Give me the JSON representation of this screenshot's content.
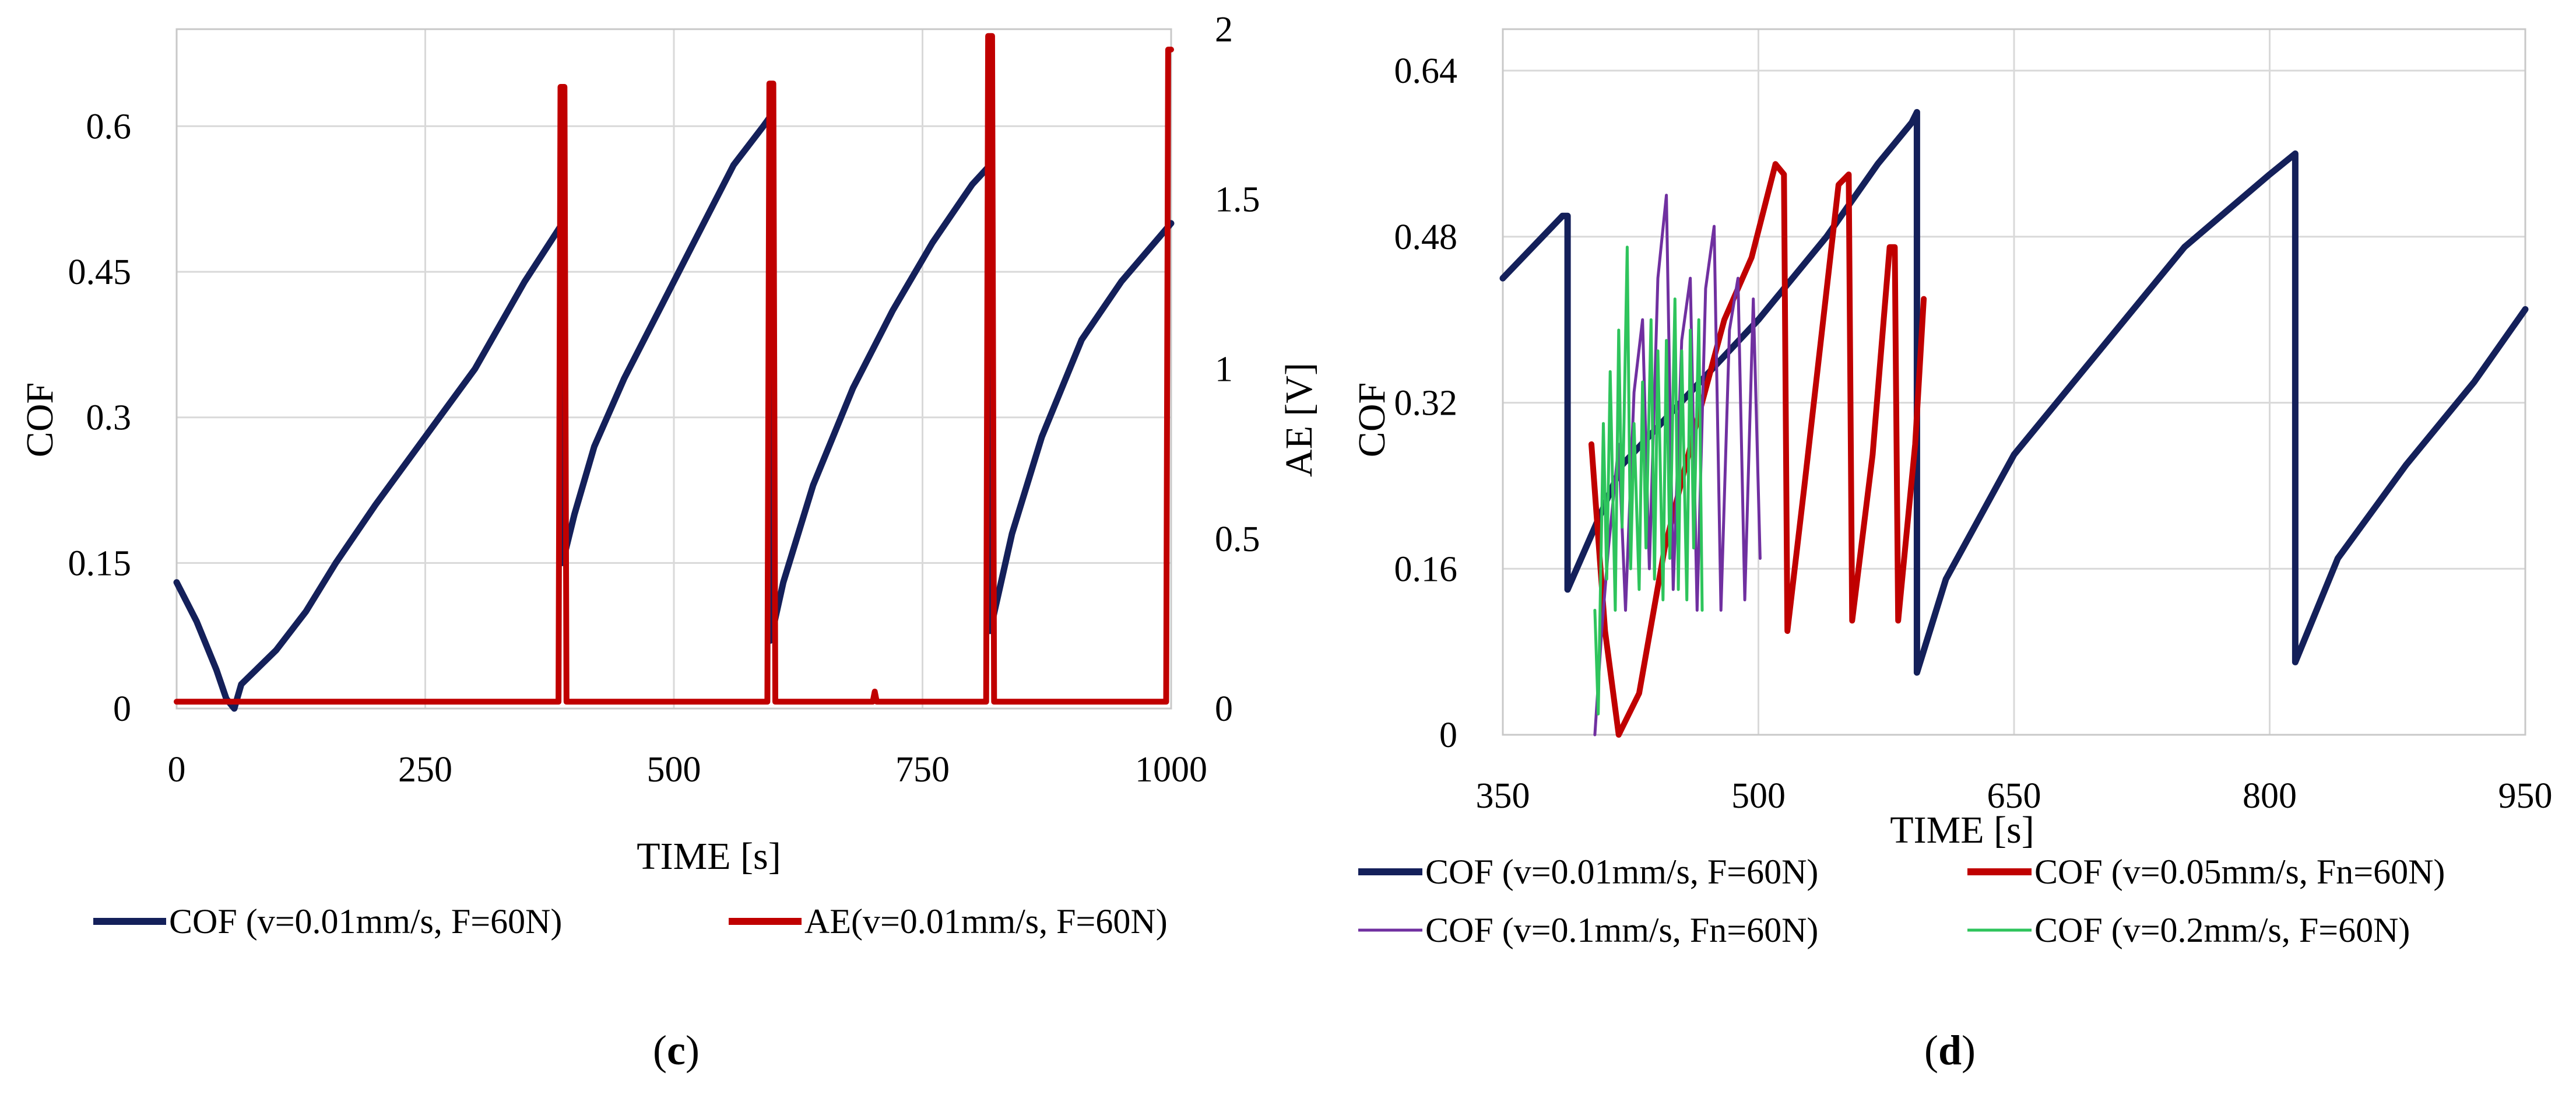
{
  "panels": [
    {
      "label_open": "(",
      "letter": "c",
      "label_close": ")"
    },
    {
      "label_open": "(",
      "letter": "d",
      "label_close": ")"
    }
  ],
  "chart_data": [
    {
      "id": "c",
      "type": "line",
      "xlabel": "TIME [s]",
      "ylabel": "COF",
      "y2label": "AE [V]",
      "xlim": [
        0,
        1000
      ],
      "ylim": [
        0,
        0.7
      ],
      "y2lim": [
        0,
        2.0
      ],
      "xticks": [
        0,
        250,
        500,
        750,
        1000
      ],
      "xtick_labels": [
        "0",
        "250",
        "500",
        "750",
        "1000"
      ],
      "yticks": [
        0,
        0.15,
        0.3,
        0.45,
        0.6
      ],
      "ytick_labels": [
        "0",
        "0.15",
        "0.3",
        "0.45",
        "0.6"
      ],
      "y2ticks": [
        0,
        0.5,
        1,
        1.5,
        2
      ],
      "y2tick_labels": [
        "0",
        "0.5",
        "1",
        "1.5",
        "2"
      ],
      "grid": true,
      "legend_position": "bottom",
      "series": [
        {
          "name": "COF (v=0.01mm/s, F=60N)",
          "axis": "left",
          "color": "#14205a",
          "x": [
            0,
            20,
            40,
            50,
            58,
            65,
            80,
            100,
            130,
            160,
            200,
            250,
            300,
            350,
            388,
            388,
            400,
            420,
            450,
            480,
            520,
            560,
            590,
            597,
            597,
            610,
            640,
            680,
            720,
            760,
            800,
            818,
            818,
            840,
            870,
            910,
            950,
            1000
          ],
          "y": [
            0.13,
            0.09,
            0.04,
            0.01,
            0.0,
            0.025,
            0.04,
            0.06,
            0.1,
            0.15,
            0.21,
            0.28,
            0.35,
            0.44,
            0.5,
            0.15,
            0.2,
            0.27,
            0.34,
            0.4,
            0.48,
            0.56,
            0.6,
            0.61,
            0.07,
            0.13,
            0.23,
            0.33,
            0.41,
            0.48,
            0.54,
            0.56,
            0.08,
            0.18,
            0.28,
            0.38,
            0.44,
            0.5
          ]
        },
        {
          "name": "AE(v=0.01mm/s, F=60N)",
          "axis": "right",
          "color": "#c00000",
          "x": [
            0,
            384,
            386,
            390,
            392,
            594,
            596,
            600,
            602,
            700,
            702,
            704,
            814,
            816,
            820,
            822,
            995,
            997,
            1000
          ],
          "y": [
            0.02,
            0.02,
            1.83,
            1.83,
            0.02,
            0.02,
            1.84,
            1.84,
            0.02,
            0.02,
            0.05,
            0.02,
            0.02,
            1.98,
            1.98,
            0.02,
            0.02,
            1.94,
            1.94
          ]
        }
      ]
    },
    {
      "id": "d",
      "type": "line",
      "xlabel": "TIME [s]",
      "ylabel": "COF",
      "xlim": [
        350,
        950
      ],
      "ylim": [
        0,
        0.68
      ],
      "xticks": [
        350,
        500,
        650,
        800,
        950
      ],
      "xtick_labels": [
        "350",
        "500",
        "650",
        "800",
        "950"
      ],
      "yticks": [
        0,
        0.16,
        0.32,
        0.48,
        0.64
      ],
      "ytick_labels": [
        "0",
        "0.16",
        "0.32",
        "0.48",
        "0.64"
      ],
      "grid": true,
      "legend_position": "bottom",
      "series": [
        {
          "name": "COF (v=0.01mm/s, F=60N)",
          "color": "#14205a",
          "x": [
            350,
            385,
            388,
            388,
            420,
            460,
            500,
            540,
            570,
            590,
            593,
            593,
            610,
            650,
            700,
            750,
            800,
            815,
            815,
            840,
            880,
            920,
            950
          ],
          "y": [
            0.44,
            0.5,
            0.5,
            0.14,
            0.26,
            0.33,
            0.4,
            0.48,
            0.55,
            0.59,
            0.6,
            0.06,
            0.15,
            0.27,
            0.37,
            0.47,
            0.54,
            0.56,
            0.07,
            0.17,
            0.26,
            0.34,
            0.41
          ]
        },
        {
          "name": "COF (v=0.05mm/s, Fn=60N)",
          "color": "#c00000",
          "x": [
            402,
            410,
            418,
            430,
            445,
            462,
            480,
            496,
            510,
            515,
            517,
            527,
            547,
            553,
            555,
            567,
            577,
            580,
            582,
            592,
            597
          ],
          "y": [
            0.28,
            0.1,
            0.0,
            0.04,
            0.18,
            0.29,
            0.4,
            0.46,
            0.55,
            0.54,
            0.1,
            0.24,
            0.53,
            0.54,
            0.11,
            0.27,
            0.47,
            0.47,
            0.11,
            0.28,
            0.42
          ]
        },
        {
          "name": "COF (v=0.1mm/s, Fn=60N)",
          "color": "#7030a0",
          "x": [
            404,
            408,
            412,
            418,
            422,
            427,
            432,
            436,
            441,
            446,
            450,
            455,
            460,
            464,
            469,
            474,
            478,
            483,
            488,
            492,
            497,
            501
          ],
          "y": [
            0.0,
            0.1,
            0.18,
            0.28,
            0.12,
            0.33,
            0.4,
            0.16,
            0.44,
            0.52,
            0.14,
            0.38,
            0.44,
            0.12,
            0.43,
            0.49,
            0.12,
            0.39,
            0.44,
            0.13,
            0.42,
            0.17
          ]
        },
        {
          "name": "COF (v=0.2mm/s, F=60N)",
          "color": "#2ec45c",
          "x": [
            404,
            406,
            409,
            411,
            413,
            416,
            418,
            420,
            423,
            425,
            427,
            430,
            432,
            434,
            437,
            439,
            441,
            444,
            446,
            448,
            451,
            453,
            455,
            458,
            460,
            462,
            465,
            467
          ],
          "y": [
            0.12,
            0.02,
            0.3,
            0.15,
            0.35,
            0.12,
            0.39,
            0.2,
            0.47,
            0.16,
            0.3,
            0.14,
            0.34,
            0.18,
            0.4,
            0.15,
            0.37,
            0.13,
            0.38,
            0.17,
            0.42,
            0.14,
            0.37,
            0.13,
            0.39,
            0.18,
            0.4,
            0.12
          ]
        }
      ]
    }
  ]
}
